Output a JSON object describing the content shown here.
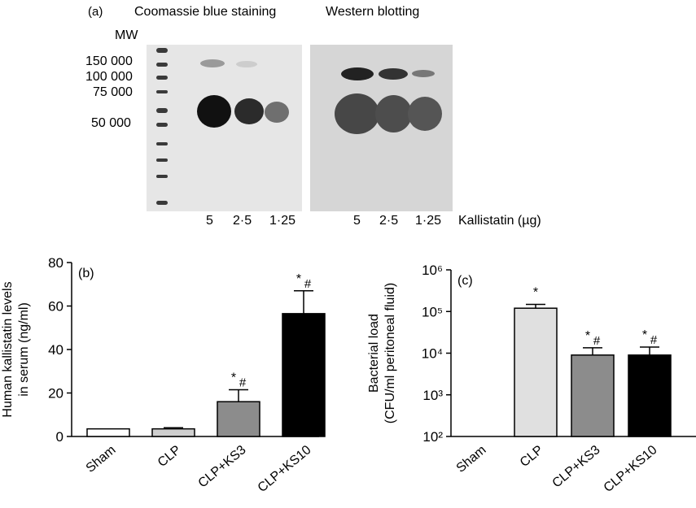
{
  "panel_a": {
    "label": "(a)",
    "titles": [
      "Coomassie blue staining",
      "Western blotting"
    ],
    "mw_header": "MW",
    "mw_labels": [
      "150 000",
      "100 000",
      "75 000",
      "50 000"
    ],
    "cb_lanes": [
      "5",
      "2·5",
      "1·25"
    ],
    "wb_lanes": [
      "5",
      "2·5",
      "1·25"
    ],
    "unit_label": "Kallistatin (µg)"
  },
  "chart_data": [
    {
      "type": "bar",
      "panel_label": "(b)",
      "categories": [
        "Sham",
        "CLP",
        "CLP+KS3",
        "CLP+KS10"
      ],
      "values": [
        3.5,
        3.5,
        16,
        56.5
      ],
      "errors": [
        0,
        0.5,
        5.5,
        10.5
      ],
      "annotations": [
        "",
        "",
        "*#",
        "*#"
      ],
      "ylabel": [
        "Human kallistatin levels",
        "in serum (ng/ml)"
      ],
      "ylim": [
        0,
        80
      ],
      "yticks": [
        "0",
        "20",
        "40",
        "60",
        "80"
      ],
      "bar_colors": [
        "#ffffff",
        "#cfcfcf",
        "#8c8c8c",
        "#000000"
      ],
      "scale": "linear"
    },
    {
      "type": "bar",
      "panel_label": "(c)",
      "categories": [
        "Sham",
        "CLP",
        "CLP+KS3",
        "CLP+KS10"
      ],
      "values": [
        null,
        120000,
        9000,
        9000
      ],
      "errors_upper": [
        null,
        148000,
        13500,
        14000
      ],
      "annotations": [
        "",
        "*",
        "*#",
        "*#"
      ],
      "ylabel": [
        "Bacterial load",
        "(CFU/ml peritoneal fluid)"
      ],
      "ylim": [
        100,
        1000000
      ],
      "yticks": [
        "10²",
        "10³",
        "10⁴",
        "10⁵",
        "10⁶"
      ],
      "bar_colors": [
        "#ffffff",
        "#e0e0e0",
        "#8c8c8c",
        "#000000"
      ],
      "scale": "log"
    }
  ]
}
